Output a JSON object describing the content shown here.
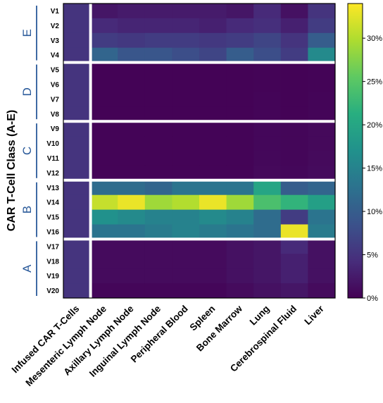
{
  "chart_data": {
    "type": "heatmap",
    "ylabel": "CAR T-Cell Class (A-E)",
    "columns": [
      "Infused CAR T-Cells",
      "Mesenteric Lymph Node",
      "Axillary Lymph Node",
      "Inguinal Lymph Node",
      "Peripheral Blood",
      "Spleen",
      "Bone Marrow",
      "Lung",
      "Cerebrospinal Fluid",
      "Liver"
    ],
    "rows": [
      "V1",
      "V2",
      "V3",
      "V4",
      "V5",
      "V6",
      "V7",
      "V8",
      "V9",
      "V10",
      "V11",
      "V12",
      "V13",
      "V14",
      "V15",
      "V16",
      "V17",
      "V18",
      "V19",
      "V20"
    ],
    "groups": [
      {
        "label": "E",
        "rows": [
          "V1",
          "V2",
          "V3",
          "V4"
        ]
      },
      {
        "label": "D",
        "rows": [
          "V5",
          "V6",
          "V7",
          "V8"
        ]
      },
      {
        "label": "C",
        "rows": [
          "V9",
          "V10",
          "V11",
          "V12"
        ]
      },
      {
        "label": "B",
        "rows": [
          "V13",
          "V14",
          "V15",
          "V16"
        ]
      },
      {
        "label": "A",
        "rows": [
          "V17",
          "V18",
          "V19",
          "V20"
        ]
      }
    ],
    "values": [
      [
        5,
        2,
        2.5,
        2.5,
        2.5,
        2.5,
        2,
        4,
        1.5,
        5
      ],
      [
        5,
        4,
        3.5,
        3.5,
        3.5,
        3,
        4,
        4.5,
        3,
        6
      ],
      [
        5,
        6,
        5.5,
        6,
        6,
        5.5,
        6,
        7,
        5,
        10
      ],
      [
        5,
        11,
        9,
        9,
        8,
        7,
        10,
        8,
        6,
        16
      ],
      [
        5,
        0.2,
        0.2,
        0.2,
        0.2,
        0.2,
        0.2,
        0.3,
        0.2,
        0.3
      ],
      [
        5,
        0.2,
        0.2,
        0.2,
        0.2,
        0.2,
        0.2,
        0.3,
        0.2,
        0.3
      ],
      [
        5,
        0.2,
        0.2,
        0.2,
        0.2,
        0.2,
        0.2,
        0.4,
        0.2,
        0.4
      ],
      [
        5,
        0.2,
        0.2,
        0.2,
        0.2,
        0.2,
        0.2,
        0.4,
        0.2,
        0.4
      ],
      [
        5,
        0.3,
        0.3,
        0.3,
        0.3,
        0.3,
        0.3,
        0.6,
        0.5,
        0.8
      ],
      [
        5,
        0.3,
        0.3,
        0.3,
        0.3,
        0.3,
        0.3,
        0.6,
        0.5,
        0.8
      ],
      [
        5,
        0.3,
        0.3,
        0.3,
        0.3,
        0.3,
        0.3,
        0.7,
        0.5,
        0.9
      ],
      [
        5,
        0.3,
        0.3,
        0.3,
        0.3,
        0.3,
        0.3,
        0.8,
        0.6,
        1.0
      ],
      [
        5,
        12,
        12,
        11,
        13,
        13,
        13,
        20,
        10,
        11
      ],
      [
        5,
        31,
        33,
        29,
        30,
        33,
        29,
        24,
        22,
        19
      ],
      [
        5,
        17,
        16,
        15,
        15,
        16,
        15,
        12,
        6,
        13
      ],
      [
        5,
        13,
        13,
        14,
        15,
        14,
        13,
        12,
        33,
        14
      ],
      [
        5,
        1.0,
        1.0,
        1.0,
        1.0,
        1.0,
        1.5,
        2.0,
        4.0,
        1.5
      ],
      [
        5,
        1.0,
        1.0,
        1.0,
        1.0,
        1.0,
        1.5,
        2.0,
        3.0,
        1.5
      ],
      [
        5,
        1.0,
        1.0,
        1.0,
        1.0,
        1.0,
        1.5,
        2.0,
        3.0,
        1.5
      ],
      [
        5,
        0.5,
        0.5,
        0.5,
        0.5,
        0.5,
        1.0,
        1.5,
        2.0,
        1.0
      ]
    ],
    "value_unit": "%",
    "colorscale": "viridis",
    "zlim": [
      0,
      34
    ],
    "colorbar_ticks": [
      "0%",
      "5%",
      "10%",
      "15%",
      "20%",
      "25%",
      "30%"
    ],
    "colorbar_tick_values": [
      0,
      5,
      10,
      15,
      20,
      25,
      30
    ]
  }
}
